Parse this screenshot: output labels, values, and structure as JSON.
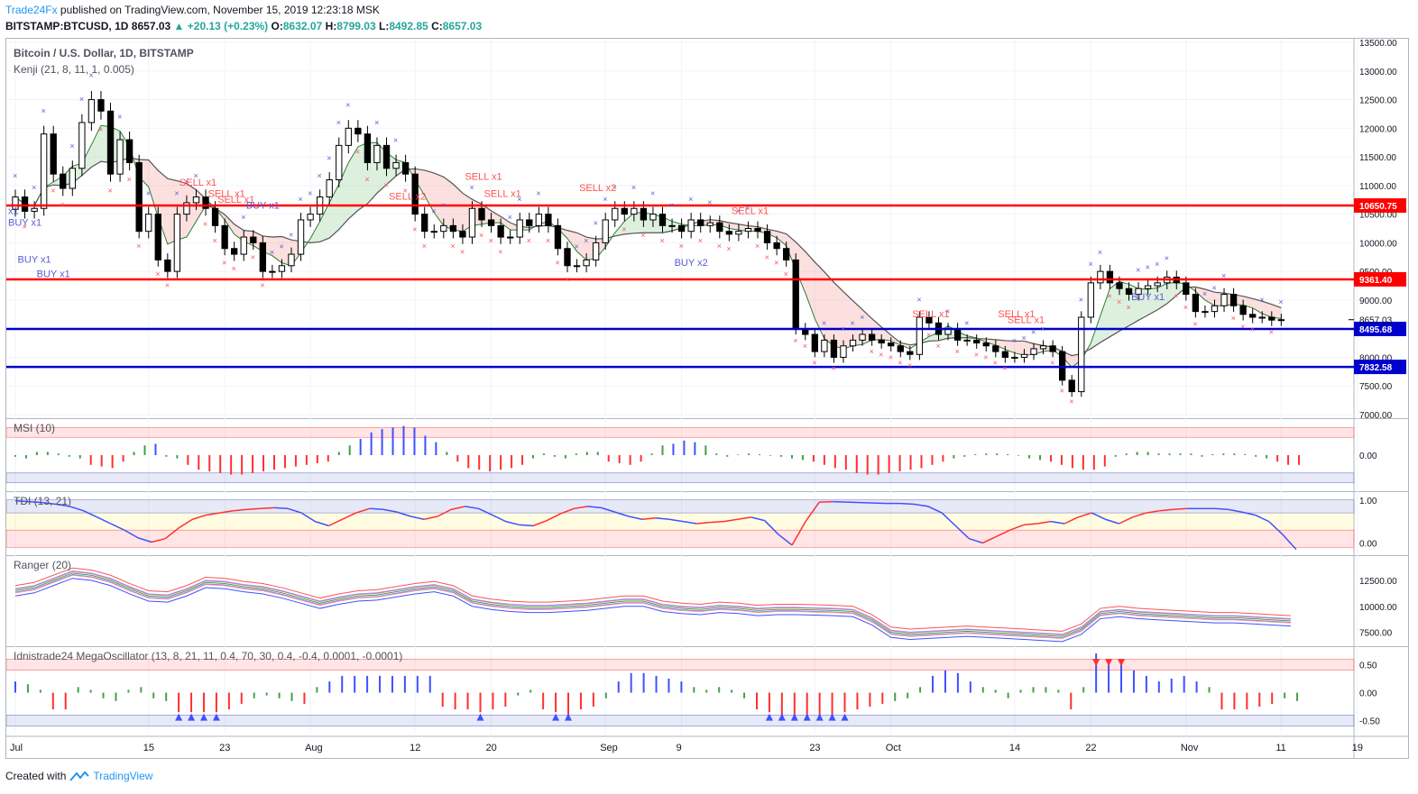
{
  "header": {
    "author": "Trade24Fx",
    "published_text": " published on TradingView.com, November 15, 2019 12:23:18 MSK",
    "symbol": "BITSTAMP:BTCUSD, 1D",
    "last": "8657.03",
    "change": "+20.13 (+0.23%)",
    "o_label": "O:",
    "o": "8632.07",
    "h_label": "H:",
    "h": "8799.03",
    "l_label": "L:",
    "l": "8492.85",
    "c_label": "C:",
    "c": "8657.03"
  },
  "footer": {
    "created": "Created with",
    "brand": "TradingView"
  },
  "colors": {
    "up": "#26a69a",
    "candle": "#000000",
    "red_line": "#ff0000",
    "blue_line": "#0000cc",
    "sell": "#ff5252",
    "buy": "#5b5bd6"
  },
  "chart_data": [
    {
      "type": "candlestick",
      "title": "Bitcoin / U.S. Dollar, 1D, BITSTAMP",
      "indicator": "Kenji (21, 8, 11, 1, 0.005)",
      "ylim": [
        7000,
        13500
      ],
      "y_ticks": [
        "13500.00",
        "13000.00",
        "12500.00",
        "12000.00",
        "11500.00",
        "11000.00",
        "10500.00",
        "10000.00",
        "9500.00",
        "9000.00",
        "8500.00",
        "8000.00",
        "7500.00",
        "7000.00"
      ],
      "x_labels": [
        {
          "label": "Jul",
          "day": 0
        },
        {
          "label": "15",
          "day": 14
        },
        {
          "label": "23",
          "day": 22
        },
        {
          "label": "Aug",
          "day": 31
        },
        {
          "label": "12",
          "day": 42
        },
        {
          "label": "20",
          "day": 50
        },
        {
          "label": "Sep",
          "day": 62
        },
        {
          "label": "9",
          "day": 70
        },
        {
          "label": "23",
          "day": 84
        },
        {
          "label": "Oct",
          "day": 92
        },
        {
          "label": "14",
          "day": 105
        },
        {
          "label": "22",
          "day": 113
        },
        {
          "label": "Nov",
          "day": 123
        },
        {
          "label": "11",
          "day": 133
        },
        {
          "label": "19",
          "day": 141
        }
      ],
      "horizontal_levels": [
        {
          "value": 10650.75,
          "label": "10650.75",
          "color": "#ff0000"
        },
        {
          "value": 9361.4,
          "label": "9361.40",
          "color": "#ff0000"
        },
        {
          "value": 8495.68,
          "label": "8495.68",
          "color": "#0000cc"
        },
        {
          "value": 7832.58,
          "label": "7832.58",
          "color": "#0000cc"
        }
      ],
      "last_price": {
        "value": 8657.03,
        "label": "8657.03"
      },
      "close": [
        10800,
        10550,
        10600,
        11900,
        11200,
        10950,
        11300,
        12100,
        12500,
        12300,
        11200,
        11800,
        11400,
        10200,
        10500,
        9700,
        9500,
        10500,
        10700,
        10800,
        10600,
        10300,
        9900,
        9800,
        10100,
        10000,
        9500,
        9500,
        9600,
        9800,
        10400,
        10500,
        10800,
        11100,
        11700,
        12000,
        11900,
        11400,
        11700,
        11300,
        11400,
        11200,
        10500,
        10200,
        10200,
        10300,
        10200,
        10100,
        10600,
        10400,
        10300,
        10100,
        10100,
        10400,
        10300,
        10500,
        10300,
        9900,
        9600,
        9600,
        9700,
        10000,
        10400,
        10600,
        10500,
        10600,
        10400,
        10500,
        10300,
        10300,
        10200,
        10400,
        10300,
        10350,
        10200,
        10150,
        10200,
        10250,
        10200,
        10000,
        9900,
        9700,
        8500,
        8400,
        8100,
        8300,
        8000,
        8200,
        8300,
        8400,
        8300,
        8250,
        8200,
        8100,
        8050,
        8700,
        8600,
        8400,
        8500,
        8300,
        8300,
        8250,
        8200,
        8100,
        8000,
        8000,
        8050,
        8150,
        8200,
        8100,
        7600,
        7400,
        8700,
        9300,
        9500,
        9300,
        9200,
        9100,
        9200,
        9250,
        9300,
        9400,
        9300,
        9100,
        8800,
        8800,
        8900,
        9100,
        8900,
        8750,
        8700,
        8700,
        8650,
        8657.03
      ],
      "signals_text": [
        "BUY x1",
        "BUY x1",
        "BUY x1",
        "SELL x1",
        "SELL x1",
        "SELL x1",
        "BUY x1",
        "SELL x2",
        "SELL x1",
        "SELL x1",
        "SELL x2",
        "BUY x2",
        "SELL x1",
        "SELL x1",
        "SELL x1",
        "SELL x1",
        "BUY x1",
        "x1"
      ]
    },
    {
      "type": "histogram",
      "title": "MSI (10)",
      "ylim": [
        -1,
        1
      ],
      "y_ticks": [
        "0.00"
      ],
      "values": [
        -0.05,
        -0.1,
        0.1,
        0.1,
        0.05,
        -0.05,
        -0.1,
        -0.3,
        -0.35,
        -0.4,
        -0.2,
        0.1,
        0.3,
        0.35,
        -0.05,
        -0.1,
        -0.3,
        -0.45,
        -0.5,
        -0.55,
        -0.6,
        -0.6,
        -0.55,
        -0.5,
        -0.45,
        -0.4,
        -0.35,
        -0.3,
        -0.25,
        -0.2,
        0.1,
        0.3,
        0.5,
        0.7,
        0.8,
        0.85,
        0.9,
        0.85,
        0.6,
        0.4,
        0.1,
        -0.2,
        -0.4,
        -0.45,
        -0.5,
        -0.45,
        -0.4,
        -0.3,
        -0.1,
        0.05,
        -0.05,
        -0.1,
        0.05,
        0.1,
        0.1,
        -0.2,
        -0.25,
        -0.3,
        -0.2,
        0.05,
        0.3,
        0.35,
        0.45,
        0.4,
        0.3,
        0.05,
        -0.05,
        0.02,
        0.05,
        0.03,
        -0.02,
        -0.05,
        -0.1,
        -0.15,
        -0.2,
        -0.3,
        -0.4,
        -0.45,
        -0.55,
        -0.6,
        -0.6,
        -0.55,
        -0.5,
        -0.45,
        -0.4,
        -0.3,
        -0.2,
        -0.1,
        -0.05,
        0.03,
        0.05,
        0.05,
        0.03,
        -0.02,
        -0.1,
        -0.15,
        -0.2,
        -0.3,
        -0.4,
        -0.45,
        -0.45,
        -0.35,
        -0.05,
        0.05,
        0.1,
        0.1,
        0.05,
        0.05,
        0.05,
        0.05,
        -0.05,
        0.03,
        0.05,
        0.05,
        0.03,
        -0.05,
        -0.1,
        -0.2,
        -0.3,
        -0.3
      ]
    },
    {
      "type": "line",
      "title": "TDI (13, 21)",
      "ylim": [
        -0.2,
        1.1
      ],
      "y_ticks": [
        "1.00",
        "0.00"
      ],
      "values": [
        0.98,
        0.96,
        0.94,
        0.9,
        0.85,
        0.75,
        0.6,
        0.45,
        0.3,
        0.12,
        0.02,
        0.1,
        0.35,
        0.55,
        0.65,
        0.7,
        0.75,
        0.78,
        0.8,
        0.82,
        0.8,
        0.7,
        0.5,
        0.4,
        0.55,
        0.7,
        0.8,
        0.78,
        0.72,
        0.62,
        0.55,
        0.62,
        0.78,
        0.85,
        0.8,
        0.65,
        0.5,
        0.42,
        0.4,
        0.52,
        0.68,
        0.8,
        0.85,
        0.82,
        0.72,
        0.62,
        0.55,
        0.58,
        0.55,
        0.5,
        0.45,
        0.48,
        0.5,
        0.55,
        0.6,
        0.52,
        0.2,
        -0.05,
        0.5,
        0.95,
        0.96,
        0.95,
        0.94,
        0.93,
        0.92,
        0.92,
        0.9,
        0.85,
        0.7,
        0.4,
        0.1,
        0.0,
        0.15,
        0.3,
        0.42,
        0.45,
        0.5,
        0.45,
        0.6,
        0.7,
        0.55,
        0.45,
        0.6,
        0.7,
        0.75,
        0.78,
        0.8,
        0.8,
        0.8,
        0.78,
        0.72,
        0.65,
        0.5,
        0.2,
        -0.15
      ]
    },
    {
      "type": "line",
      "title": "Ranger (20)",
      "ylim": [
        6500,
        14500
      ],
      "y_ticks": [
        "12500.00",
        "10000.00",
        "7500.00"
      ],
      "series": [
        {
          "values": [
            12000,
            12300,
            13000,
            13700,
            13500,
            13000,
            12200,
            11500,
            11400,
            12000,
            12800,
            12700,
            12400,
            12200,
            11800,
            11300,
            10800,
            11200,
            11500,
            11600,
            11900,
            12200,
            12400,
            12000,
            11000,
            10700,
            10500,
            10400,
            10400,
            10500,
            10600,
            10800,
            11000,
            11000,
            10500,
            10300,
            10200,
            10400,
            10300,
            10100,
            10200,
            10200,
            10150,
            10100,
            10000,
            9200,
            8000,
            7800,
            7900,
            8000,
            8100,
            8000,
            7900,
            7800,
            7700,
            7600,
            8300,
            9800,
            10000,
            9800,
            9700,
            9600,
            9500,
            9400,
            9400,
            9300,
            9200,
            9100
          ]
        },
        {
          "values": [
            11000,
            11300,
            12000,
            12700,
            12500,
            12000,
            11200,
            10500,
            10400,
            11000,
            11800,
            11700,
            11400,
            11200,
            10800,
            10300,
            9800,
            10200,
            10500,
            10600,
            10900,
            11200,
            11400,
            11000,
            10000,
            9700,
            9500,
            9400,
            9400,
            9500,
            9600,
            9800,
            10000,
            10000,
            9500,
            9300,
            9200,
            9400,
            9300,
            9100,
            9200,
            9200,
            9150,
            9100,
            9000,
            8200,
            7000,
            6800,
            6900,
            7000,
            7100,
            7000,
            6900,
            6800,
            6700,
            6600,
            7300,
            8800,
            9000,
            8800,
            8700,
            8600,
            8500,
            8400,
            8400,
            8300,
            8200,
            8100
          ]
        }
      ]
    },
    {
      "type": "histogram",
      "title": "Idnistrade24 MegaOscillator (13, 8, 21, 11, 0.4, 70, 30, 0.4, -0.4, 0.0001, -0.0001)",
      "ylim": [
        -0.7,
        0.75
      ],
      "y_ticks": [
        "0.50",
        "0.00",
        "-0.50"
      ],
      "values": [
        0.2,
        0.15,
        0.05,
        -0.3,
        -0.3,
        0.1,
        0.05,
        -0.1,
        -0.15,
        0.05,
        0.1,
        -0.1,
        -0.15,
        -0.35,
        -0.35,
        -0.35,
        -0.35,
        -0.3,
        -0.2,
        -0.1,
        -0.05,
        -0.1,
        -0.15,
        -0.2,
        0.1,
        0.2,
        0.3,
        0.3,
        0.3,
        0.3,
        0.3,
        0.3,
        0.3,
        0.3,
        -0.25,
        -0.3,
        -0.3,
        -0.35,
        -0.3,
        -0.25,
        -0.05,
        0.05,
        -0.3,
        -0.35,
        -0.4,
        -0.3,
        -0.25,
        -0.1,
        0.2,
        0.35,
        0.35,
        0.3,
        0.25,
        0.2,
        0.1,
        0.05,
        0.1,
        0.05,
        -0.1,
        -0.3,
        -0.35,
        -0.4,
        -0.5,
        -0.5,
        -0.45,
        -0.4,
        -0.35,
        -0.3,
        -0.25,
        -0.2,
        -0.15,
        -0.1,
        0.1,
        0.3,
        0.4,
        0.35,
        0.2,
        0.1,
        0.05,
        -0.1,
        0.05,
        0.1,
        0.1,
        0.05,
        -0.3,
        0.1,
        0.7,
        0.6,
        0.5,
        0.4,
        0.3,
        0.2,
        0.25,
        0.3,
        0.2,
        0.1,
        -0.3,
        -0.3,
        -0.3,
        -0.25,
        -0.2,
        -0.1,
        -0.15
      ]
    }
  ]
}
